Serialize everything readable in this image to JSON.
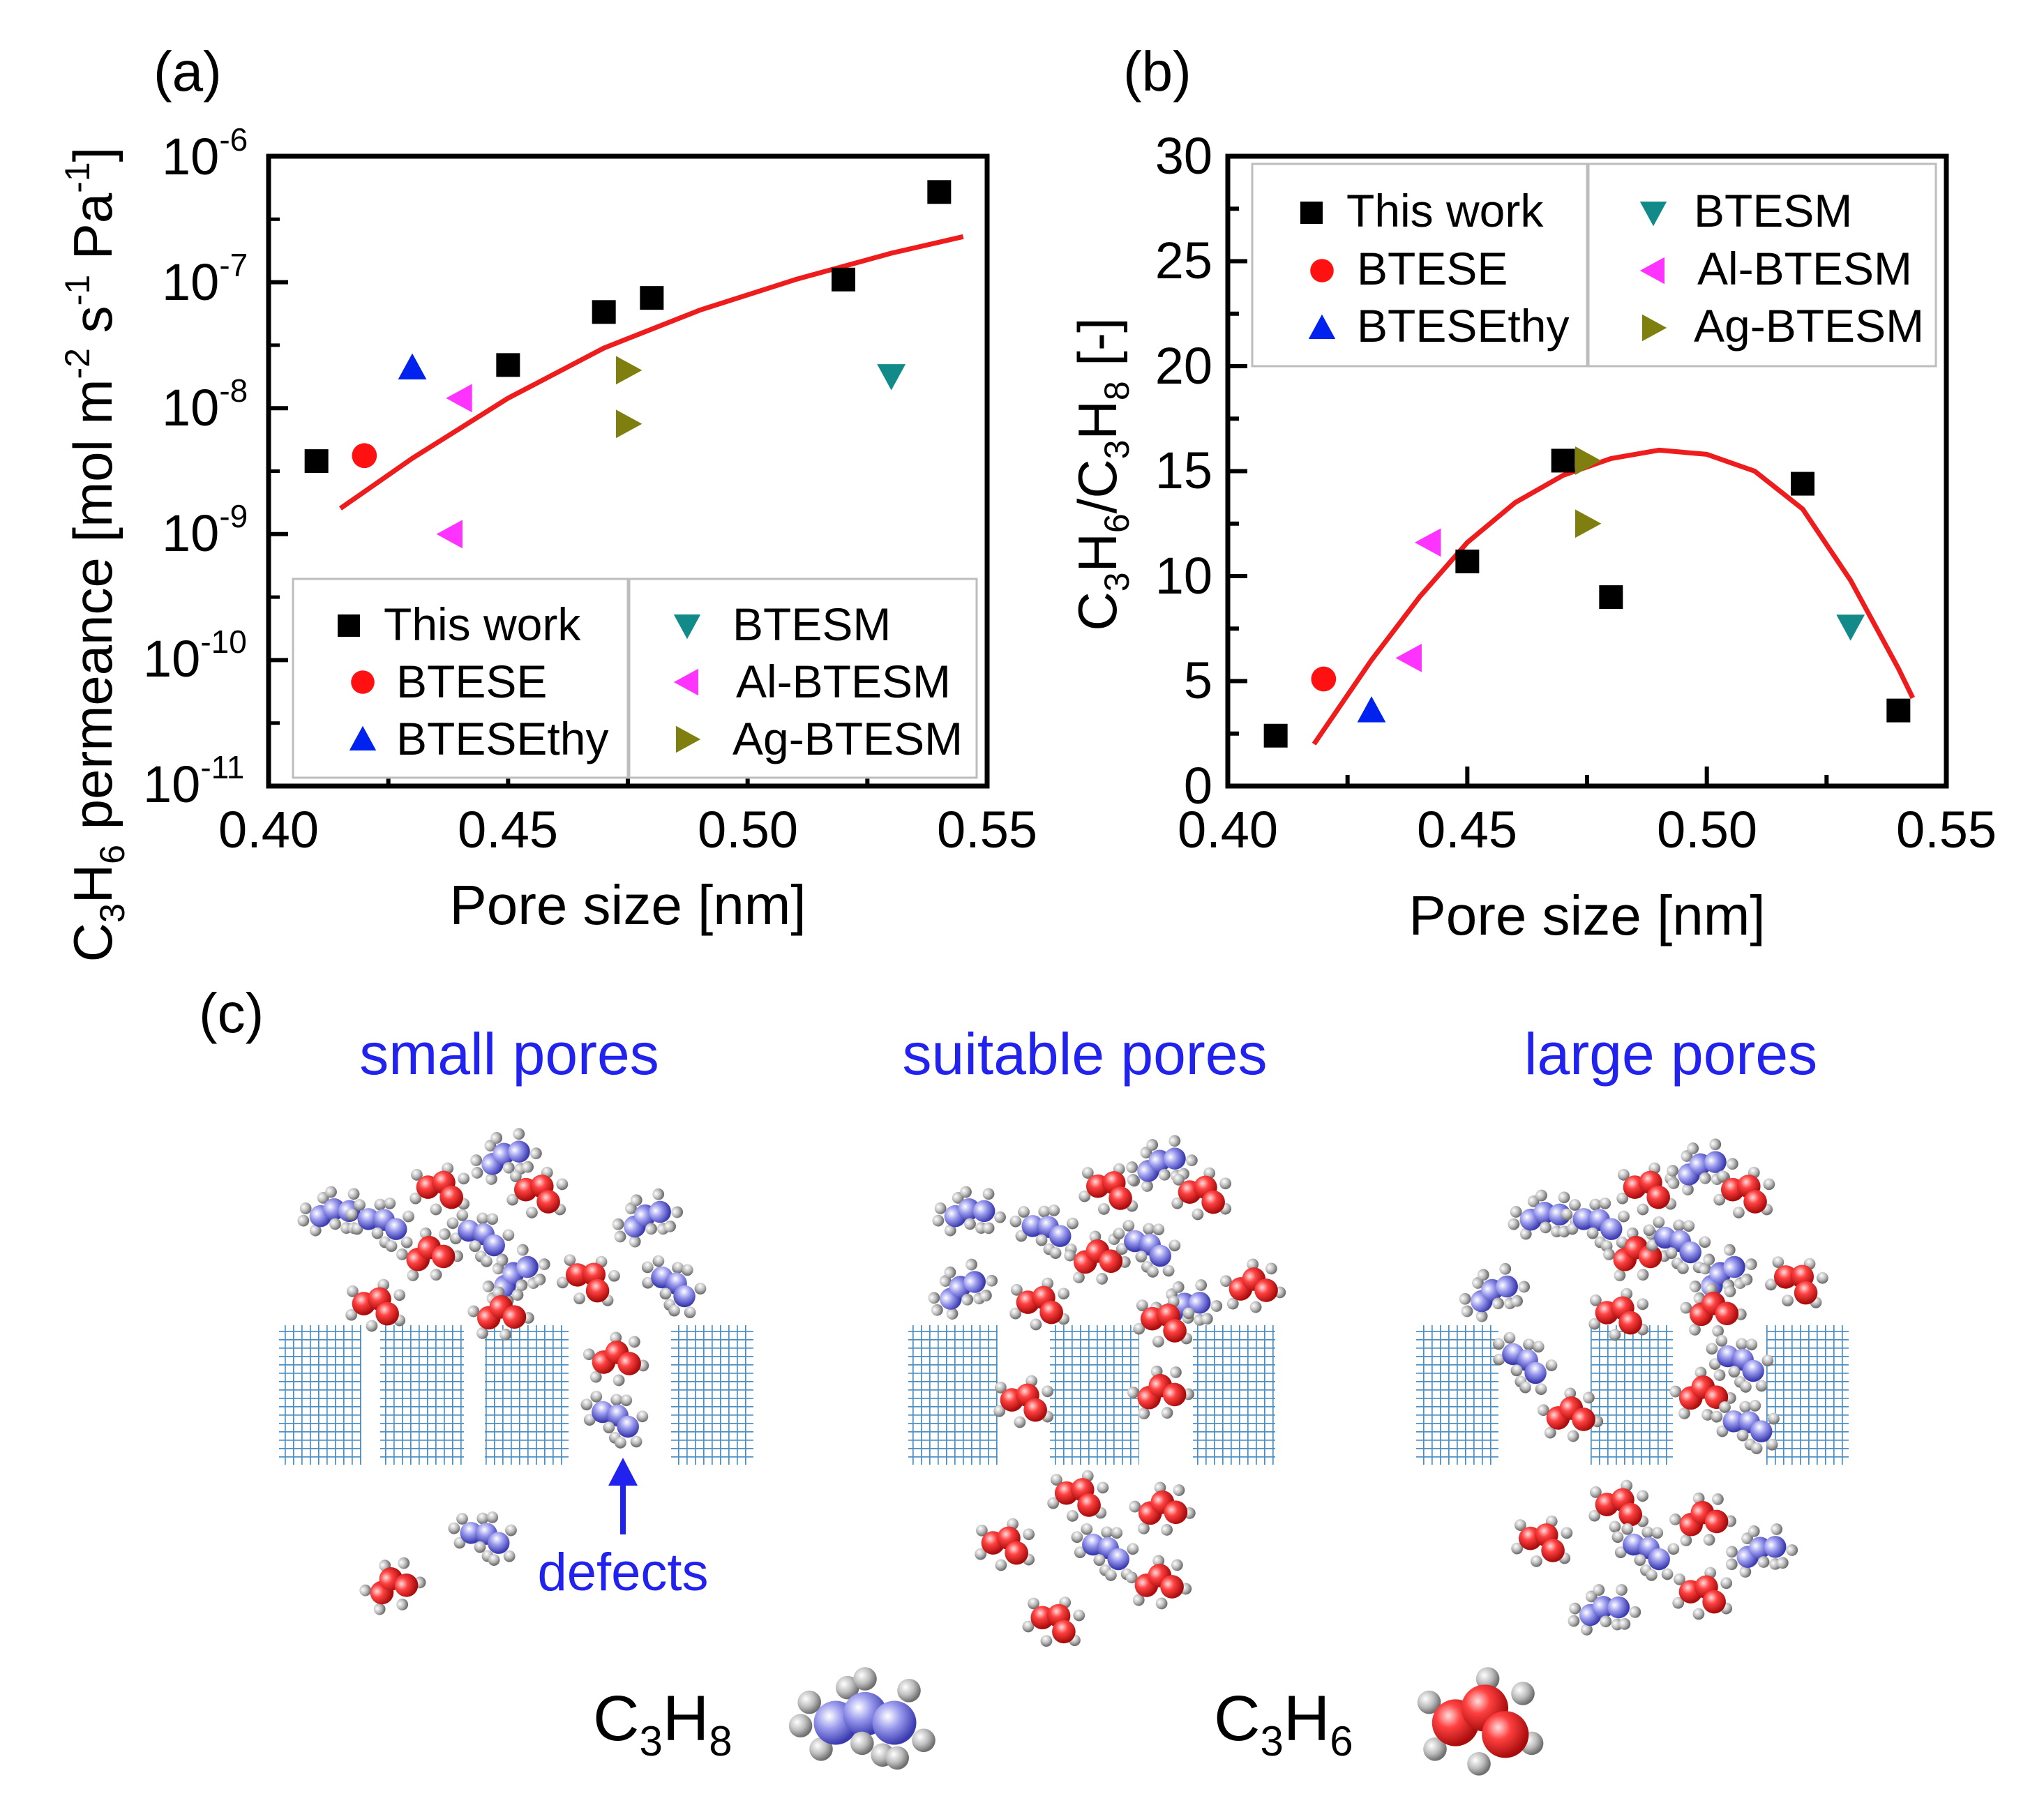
{
  "figure": {
    "panel_labels": [
      "(a)",
      "(b)",
      "(c)"
    ]
  },
  "chart_data": [
    {
      "panel": "(a)",
      "type": "scatter",
      "xlabel": "Pore size [nm]",
      "ylabel_parts": {
        "c": "C",
        "sub1": "3",
        "h": "H",
        "sub2": "6",
        "rest1": " permeance [mol m",
        "exp1": "-2",
        "rest2": " s",
        "exp2": "-1",
        "rest3": " Pa",
        "exp3": "-1",
        "rest4": "]"
      },
      "xlim": [
        0.4,
        0.55
      ],
      "yscale": "log",
      "ylim_exp": [
        -11,
        -6
      ],
      "x_ticks": [
        "0.40",
        "0.45",
        "0.50",
        "0.55"
      ],
      "y_ticks": [
        {
          "exp": -11,
          "base": "10",
          "sup": "-11"
        },
        {
          "exp": -10,
          "base": "10",
          "sup": "-10"
        },
        {
          "exp": -9,
          "base": "10",
          "sup": "-9"
        },
        {
          "exp": -8,
          "base": "10",
          "sup": "-8"
        },
        {
          "exp": -7,
          "base": "10",
          "sup": "-7"
        },
        {
          "exp": -6,
          "base": "10",
          "sup": "-6"
        }
      ],
      "legend_position": "bottom",
      "series": [
        {
          "name": "This work",
          "marker": "square",
          "color": "#000000",
          "points": [
            [
              0.41,
              3.8e-09
            ],
            [
              0.45,
              2.2e-08
            ],
            [
              0.47,
              5.8e-08
            ],
            [
              0.48,
              7.5e-08
            ],
            [
              0.52,
              1.05e-07
            ],
            [
              0.54,
              5.2e-07
            ]
          ]
        },
        {
          "name": "BTESE",
          "marker": "circle",
          "color": "#ff1111",
          "points": [
            [
              0.42,
              4.2e-09
            ]
          ]
        },
        {
          "name": "BTESEthy",
          "marker": "triangle-up",
          "color": "#0022ee",
          "points": [
            [
              0.43,
              2.1e-08
            ]
          ]
        },
        {
          "name": "BTESM",
          "marker": "triangle-down",
          "color": "#138a8a",
          "points": [
            [
              0.53,
              1.8e-08
            ]
          ]
        },
        {
          "name": "Al-BTESM",
          "marker": "triangle-left",
          "color": "#ff33ff",
          "points": [
            [
              0.44,
              1.2e-08
            ],
            [
              0.438,
              1e-09
            ]
          ]
        },
        {
          "name": "Ag-BTESM",
          "marker": "triangle-right",
          "color": "#7f7f10",
          "points": [
            [
              0.475,
              2e-08
            ],
            [
              0.475,
              7.5e-09
            ]
          ]
        }
      ],
      "fit_line": {
        "color": "#ee1c1c",
        "x": [
          0.415,
          0.43,
          0.45,
          0.47,
          0.49,
          0.51,
          0.53,
          0.545
        ],
        "y": [
          1.6e-09,
          4e-09,
          1.2e-08,
          3e-08,
          6e-08,
          1.05e-07,
          1.7e-07,
          2.3e-07
        ]
      }
    },
    {
      "panel": "(b)",
      "type": "scatter",
      "xlabel": "Pore size [nm]",
      "ylabel_parts": {
        "c1": "C",
        "s1": "3",
        "h1": "H",
        "s2": "6",
        "slash": "/C",
        "s3": "3",
        "h2": "H",
        "s4": "8",
        "rest": " [-]"
      },
      "xlim": [
        0.4,
        0.55
      ],
      "ylim": [
        0,
        30
      ],
      "x_ticks": [
        "0.40",
        "0.45",
        "0.50",
        "0.55"
      ],
      "y_ticks": [
        "0",
        "5",
        "10",
        "15",
        "20",
        "25",
        "30"
      ],
      "legend_position": "top",
      "series": [
        {
          "name": "This work",
          "marker": "square",
          "color": "#000000",
          "points": [
            [
              0.41,
              2.4
            ],
            [
              0.45,
              10.7
            ],
            [
              0.47,
              15.5
            ],
            [
              0.48,
              9.0
            ],
            [
              0.52,
              14.4
            ],
            [
              0.54,
              3.6
            ]
          ]
        },
        {
          "name": "BTESE",
          "marker": "circle",
          "color": "#ff1111",
          "points": [
            [
              0.42,
              5.1
            ]
          ]
        },
        {
          "name": "BTESEthy",
          "marker": "triangle-up",
          "color": "#0022ee",
          "points": [
            [
              0.43,
              3.6
            ]
          ]
        },
        {
          "name": "BTESM",
          "marker": "triangle-down",
          "color": "#138a8a",
          "points": [
            [
              0.53,
              7.6
            ]
          ]
        },
        {
          "name": "Al-BTESM",
          "marker": "triangle-left",
          "color": "#ff33ff",
          "points": [
            [
              0.442,
              11.6
            ],
            [
              0.438,
              6.1
            ]
          ]
        },
        {
          "name": "Ag-BTESM",
          "marker": "triangle-right",
          "color": "#7f7f10",
          "points": [
            [
              0.475,
              15.5
            ],
            [
              0.475,
              12.5
            ]
          ]
        }
      ],
      "fit_line": {
        "color": "#ee1c1c",
        "x": [
          0.418,
          0.43,
          0.44,
          0.45,
          0.46,
          0.47,
          0.48,
          0.49,
          0.5,
          0.51,
          0.52,
          0.53,
          0.54,
          0.543
        ],
        "y": [
          2.0,
          6.0,
          9.0,
          11.6,
          13.5,
          14.8,
          15.6,
          16.0,
          15.8,
          15.0,
          13.2,
          9.8,
          5.6,
          4.2
        ]
      }
    }
  ],
  "diagram": {
    "titles": [
      "small pores",
      "suitable pores",
      "large pores"
    ],
    "defects_label": "defects",
    "title_color": "#2222ee",
    "membrane_color": "#4a8fc4",
    "propane_color": "#7777dd",
    "propylene_color": "#ee3333",
    "legend": {
      "propane": {
        "c": "C",
        "s1": "3",
        "h": "H",
        "s2": "8"
      },
      "propylene": {
        "c": "C",
        "s1": "3",
        "h": "H",
        "s2": "6"
      }
    }
  }
}
